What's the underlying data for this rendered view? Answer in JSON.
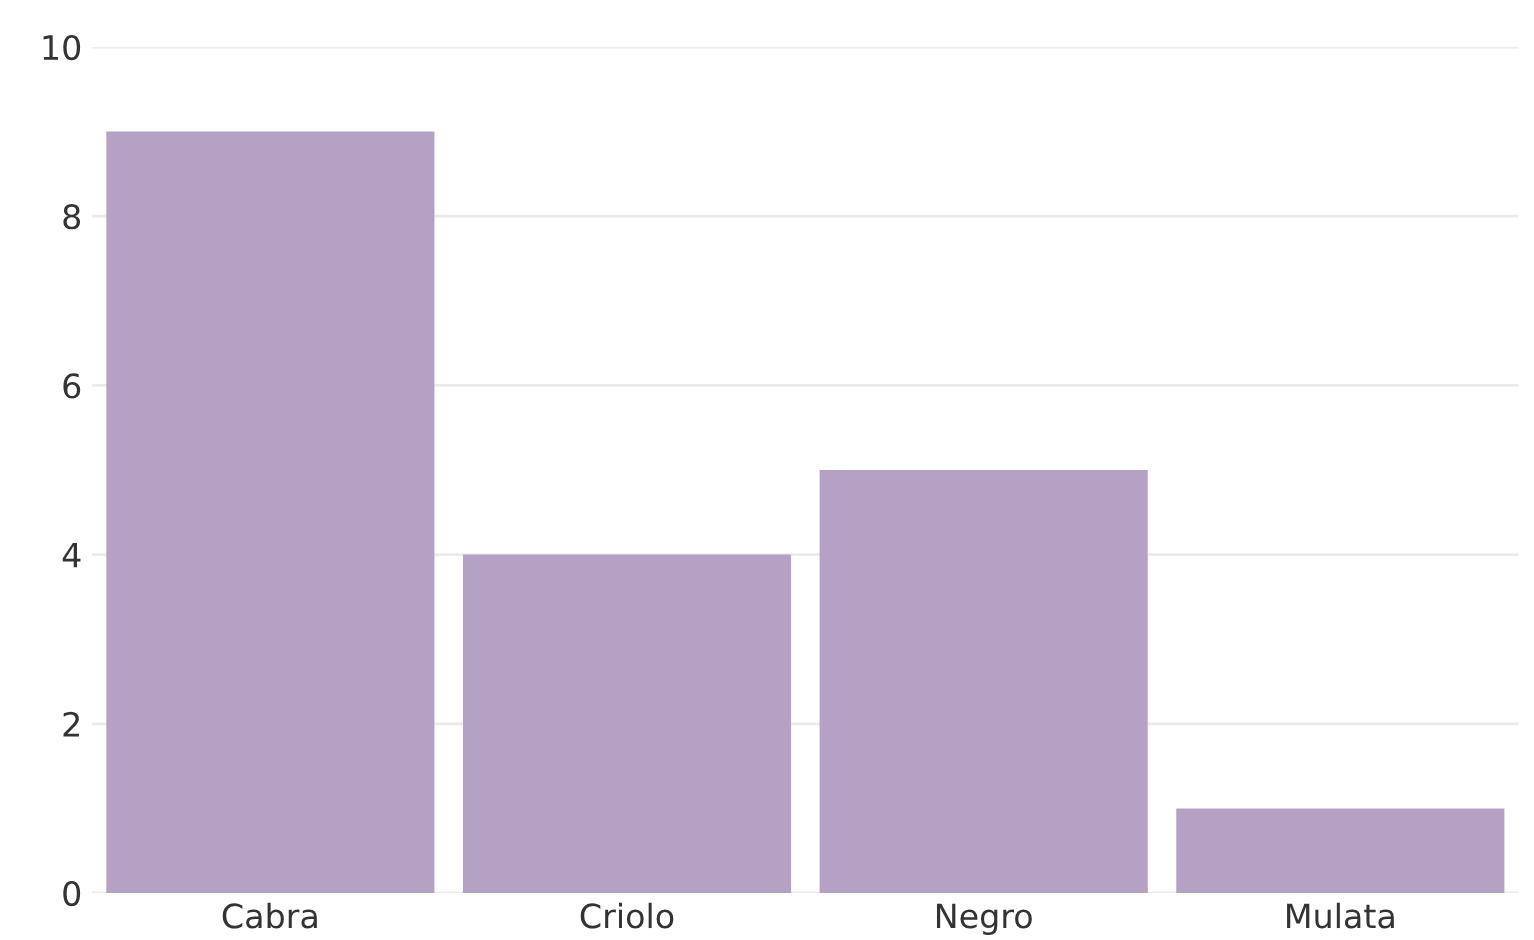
{
  "chart_data": {
    "type": "bar",
    "categories": [
      "Cabra",
      "Criolo",
      "Negro",
      "Mulata"
    ],
    "values": [
      9,
      4,
      5,
      1
    ],
    "color": "#b5a1c3",
    "ylim": [
      0,
      10
    ],
    "yticks": [
      0,
      2,
      4,
      6,
      8,
      10
    ],
    "grid": "y"
  }
}
